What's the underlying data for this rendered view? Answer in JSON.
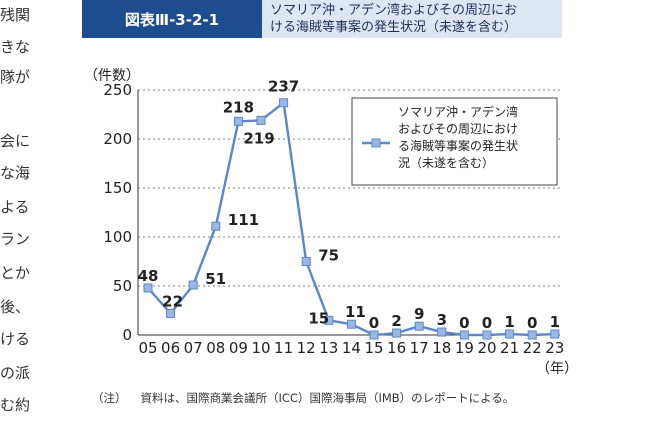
{
  "side_text": [
    "残関",
    "きな",
    "隊が",
    "会に",
    "な海",
    "よる",
    "ラン",
    "とか",
    "後、",
    "ける",
    "の派",
    "む約"
  ],
  "header": {
    "tag": "図表Ⅲ-3-2-1",
    "title_lines": [
      "ソマリア沖・アデン湾およびその周辺にお",
      "ける海賊等事案の発生状況（未遂を含む）"
    ]
  },
  "note": {
    "label": "（注）",
    "text": "資料は、国際商業会議所（ICC）国際海事局（IMB）のレポートによる。"
  },
  "colors": {
    "line": "#5b87c9",
    "marker": "#9bb8e3",
    "header_bg": "#1d4d8f",
    "title_bg": "#dfe6f3"
  },
  "chart_data": {
    "type": "line",
    "title": "",
    "xlabel": "（年）",
    "ylabel": "（件数）",
    "ylim": [
      0,
      250
    ],
    "yticks": [
      0,
      50,
      100,
      150,
      200,
      250
    ],
    "grid": "horizontal dotted",
    "legend_position": "top-right",
    "categories": [
      "05",
      "06",
      "07",
      "08",
      "09",
      "10",
      "11",
      "12",
      "13",
      "14",
      "15",
      "16",
      "17",
      "18",
      "19",
      "20",
      "21",
      "22",
      "23"
    ],
    "series": [
      {
        "name_lines": [
          "ソマリア沖・アデン湾",
          "およびその周辺におけ",
          "る海賊等事案の発生状",
          "況（未遂を含む）"
        ],
        "values": [
          48,
          22,
          51,
          111,
          218,
          219,
          237,
          75,
          15,
          11,
          0,
          2,
          9,
          3,
          0,
          0,
          1,
          0,
          1
        ]
      }
    ]
  }
}
